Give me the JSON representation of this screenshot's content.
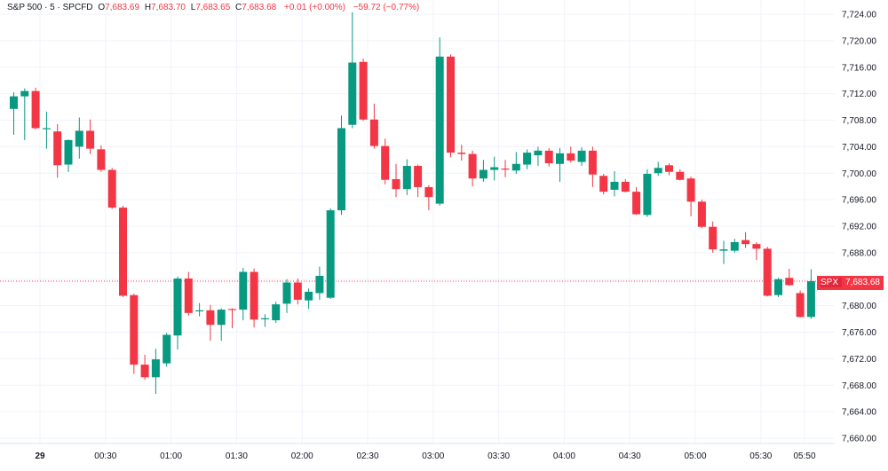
{
  "legend": {
    "symbol": "S&P 500 · 5 · SPCFD",
    "open_label": "O",
    "open": "7,683.69",
    "high_label": "H",
    "high": "7,683.70",
    "low_label": "L",
    "low": "7,683.65",
    "close_label": "C",
    "close": "7,683.68",
    "change": "+0.01 (+0.00%)",
    "session_change": "−59.72 (−0.77%)"
  },
  "last_price": {
    "symbol": "SPX",
    "value": "7,683.68"
  },
  "colors": {
    "up": "#089981",
    "down": "#f23645",
    "grid": "#f0f3fa",
    "axis_text": "#131722"
  },
  "chart_data": {
    "type": "candlestick",
    "interval_minutes": 5,
    "grid": true,
    "y_axis": {
      "min": 7660,
      "max": 7724,
      "step": 4,
      "position": "right",
      "ticks": [
        "7,724.00",
        "7,720.00",
        "7,716.00",
        "7,712.00",
        "7,708.00",
        "7,704.00",
        "7,700.00",
        "7,696.00",
        "7,692.00",
        "7,688.00",
        "7,684.00",
        "7,680.00",
        "7,676.00",
        "7,672.00",
        "7,668.00",
        "7,664.00",
        "7,660.00"
      ]
    },
    "x_axis": {
      "labels": [
        {
          "time": "29",
          "bar": 2.4,
          "bold": true
        },
        {
          "time": "00:30",
          "bar": 8.4
        },
        {
          "time": "01:00",
          "bar": 14.4
        },
        {
          "time": "01:30",
          "bar": 20.4
        },
        {
          "time": "02:00",
          "bar": 26.4
        },
        {
          "time": "02:30",
          "bar": 32.4
        },
        {
          "time": "03:00",
          "bar": 38.4
        },
        {
          "time": "03:30",
          "bar": 44.4
        },
        {
          "time": "04:00",
          "bar": 50.4
        },
        {
          "time": "04:30",
          "bar": 56.4
        },
        {
          "time": "05:00",
          "bar": 62.4
        },
        {
          "time": "05:30",
          "bar": 68.4
        },
        {
          "time": "05:50",
          "bar": 72.4
        }
      ]
    },
    "candles": [
      {
        "o": 7709.7,
        "h": 7712.2,
        "l": 7705.8,
        "c": 7711.6
      },
      {
        "o": 7711.6,
        "h": 7712.8,
        "l": 7705.0,
        "c": 7712.4
      },
      {
        "o": 7712.4,
        "h": 7712.9,
        "l": 7706.6,
        "c": 7706.8
      },
      {
        "o": 7706.8,
        "h": 7709.3,
        "l": 7703.7,
        "c": 7706.8
      },
      {
        "o": 7706.3,
        "h": 7707.4,
        "l": 7699.3,
        "c": 7701.2
      },
      {
        "o": 7701.3,
        "h": 7705.1,
        "l": 7700.2,
        "c": 7705.0
      },
      {
        "o": 7704.0,
        "h": 7708.4,
        "l": 7702.2,
        "c": 7706.4
      },
      {
        "o": 7706.4,
        "h": 7708.1,
        "l": 7702.9,
        "c": 7703.7
      },
      {
        "o": 7703.6,
        "h": 7704.2,
        "l": 7700.2,
        "c": 7700.5
      },
      {
        "o": 7700.5,
        "h": 7700.8,
        "l": 7694.6,
        "c": 7694.8
      },
      {
        "o": 7694.8,
        "h": 7695.1,
        "l": 7681.3,
        "c": 7681.5
      },
      {
        "o": 7681.6,
        "h": 7681.8,
        "l": 7669.7,
        "c": 7671.1
      },
      {
        "o": 7671.1,
        "h": 7672.6,
        "l": 7668.8,
        "c": 7669.2
      },
      {
        "o": 7669.2,
        "h": 7673.5,
        "l": 7666.7,
        "c": 7671.9
      },
      {
        "o": 7671.3,
        "h": 7675.9,
        "l": 7670.8,
        "c": 7675.6
      },
      {
        "o": 7675.5,
        "h": 7684.4,
        "l": 7673.4,
        "c": 7684.1
      },
      {
        "o": 7684.1,
        "h": 7685.1,
        "l": 7678.5,
        "c": 7678.9
      },
      {
        "o": 7679.2,
        "h": 7680.4,
        "l": 7678.4,
        "c": 7679.3
      },
      {
        "o": 7679.3,
        "h": 7680.1,
        "l": 7674.7,
        "c": 7677.1
      },
      {
        "o": 7677.1,
        "h": 7679.6,
        "l": 7674.7,
        "c": 7679.4
      },
      {
        "o": 7679.5,
        "h": 7679.6,
        "l": 7676.6,
        "c": 7679.4
      },
      {
        "o": 7679.4,
        "h": 7685.7,
        "l": 7677.8,
        "c": 7685.1
      },
      {
        "o": 7685.1,
        "h": 7685.6,
        "l": 7676.7,
        "c": 7677.9
      },
      {
        "o": 7678.0,
        "h": 7678.7,
        "l": 7676.8,
        "c": 7678.1
      },
      {
        "o": 7677.8,
        "h": 7680.6,
        "l": 7677.4,
        "c": 7680.2
      },
      {
        "o": 7680.3,
        "h": 7684.0,
        "l": 7678.9,
        "c": 7683.5
      },
      {
        "o": 7683.5,
        "h": 7684.1,
        "l": 7680.2,
        "c": 7680.9
      },
      {
        "o": 7680.8,
        "h": 7682.6,
        "l": 7679.5,
        "c": 7682.1
      },
      {
        "o": 7681.9,
        "h": 7685.9,
        "l": 7680.9,
        "c": 7684.5
      },
      {
        "o": 7681.2,
        "h": 7694.7,
        "l": 7681.0,
        "c": 7694.4
      },
      {
        "o": 7694.4,
        "h": 7708.7,
        "l": 7693.7,
        "c": 7706.8
      },
      {
        "o": 7707.3,
        "h": 7724.3,
        "l": 7706.8,
        "c": 7716.7
      },
      {
        "o": 7716.8,
        "h": 7717.3,
        "l": 7707.9,
        "c": 7708.1
      },
      {
        "o": 7708.1,
        "h": 7710.5,
        "l": 7703.7,
        "c": 7704.1
      },
      {
        "o": 7704.1,
        "h": 7705.2,
        "l": 7698.3,
        "c": 7699.0
      },
      {
        "o": 7699.1,
        "h": 7701.4,
        "l": 7696.4,
        "c": 7697.6
      },
      {
        "o": 7697.6,
        "h": 7702.1,
        "l": 7696.7,
        "c": 7701.1
      },
      {
        "o": 7701.1,
        "h": 7701.3,
        "l": 7696.4,
        "c": 7697.9
      },
      {
        "o": 7697.9,
        "h": 7698.2,
        "l": 7694.4,
        "c": 7696.4
      },
      {
        "o": 7695.4,
        "h": 7720.5,
        "l": 7695.1,
        "c": 7717.6
      },
      {
        "o": 7717.6,
        "h": 7717.9,
        "l": 7702.4,
        "c": 7703.1
      },
      {
        "o": 7703.1,
        "h": 7704.3,
        "l": 7701.9,
        "c": 7702.9
      },
      {
        "o": 7702.9,
        "h": 7703.4,
        "l": 7698.0,
        "c": 7699.2
      },
      {
        "o": 7699.2,
        "h": 7702.0,
        "l": 7698.7,
        "c": 7700.5
      },
      {
        "o": 7700.5,
        "h": 7702.5,
        "l": 7698.9,
        "c": 7700.9
      },
      {
        "o": 7700.7,
        "h": 7702.0,
        "l": 7699.4,
        "c": 7700.6
      },
      {
        "o": 7700.4,
        "h": 7703.2,
        "l": 7699.9,
        "c": 7701.4
      },
      {
        "o": 7701.3,
        "h": 7703.6,
        "l": 7700.6,
        "c": 7703.1
      },
      {
        "o": 7702.7,
        "h": 7704.0,
        "l": 7701.1,
        "c": 7703.4
      },
      {
        "o": 7703.4,
        "h": 7703.8,
        "l": 7701.0,
        "c": 7701.5
      },
      {
        "o": 7701.4,
        "h": 7703.8,
        "l": 7698.7,
        "c": 7703.0
      },
      {
        "o": 7703.0,
        "h": 7704.0,
        "l": 7701.6,
        "c": 7701.9
      },
      {
        "o": 7701.7,
        "h": 7703.9,
        "l": 7701.1,
        "c": 7703.4
      },
      {
        "o": 7703.4,
        "h": 7704.0,
        "l": 7697.9,
        "c": 7699.8
      },
      {
        "o": 7699.6,
        "h": 7699.9,
        "l": 7696.8,
        "c": 7697.2
      },
      {
        "o": 7697.5,
        "h": 7700.3,
        "l": 7696.5,
        "c": 7698.7
      },
      {
        "o": 7698.7,
        "h": 7699.1,
        "l": 7697.1,
        "c": 7697.2
      },
      {
        "o": 7697.2,
        "h": 7697.9,
        "l": 7693.7,
        "c": 7693.8
      },
      {
        "o": 7693.7,
        "h": 7700.6,
        "l": 7693.4,
        "c": 7699.9
      },
      {
        "o": 7700.0,
        "h": 7701.7,
        "l": 7699.6,
        "c": 7700.8
      },
      {
        "o": 7701.2,
        "h": 7701.5,
        "l": 7699.7,
        "c": 7700.2
      },
      {
        "o": 7700.2,
        "h": 7700.6,
        "l": 7698.9,
        "c": 7699.0
      },
      {
        "o": 7699.2,
        "h": 7699.5,
        "l": 7693.5,
        "c": 7695.7
      },
      {
        "o": 7695.7,
        "h": 7696.0,
        "l": 7691.7,
        "c": 7691.9
      },
      {
        "o": 7691.9,
        "h": 7692.7,
        "l": 7688.0,
        "c": 7688.5
      },
      {
        "o": 7688.3,
        "h": 7689.8,
        "l": 7686.3,
        "c": 7688.5
      },
      {
        "o": 7688.3,
        "h": 7690.1,
        "l": 7688.0,
        "c": 7689.6
      },
      {
        "o": 7689.9,
        "h": 7691.1,
        "l": 7688.7,
        "c": 7689.3
      },
      {
        "o": 7689.3,
        "h": 7689.6,
        "l": 7686.9,
        "c": 7688.6
      },
      {
        "o": 7688.6,
        "h": 7688.9,
        "l": 7681.4,
        "c": 7681.5
      },
      {
        "o": 7681.6,
        "h": 7684.2,
        "l": 7681.3,
        "c": 7684.0
      },
      {
        "o": 7684.2,
        "h": 7685.6,
        "l": 7683.0,
        "c": 7683.1
      },
      {
        "o": 7681.9,
        "h": 7682.3,
        "l": 7678.2,
        "c": 7678.3
      },
      {
        "o": 7678.3,
        "h": 7685.5,
        "l": 7678.0,
        "c": 7683.7
      }
    ]
  }
}
